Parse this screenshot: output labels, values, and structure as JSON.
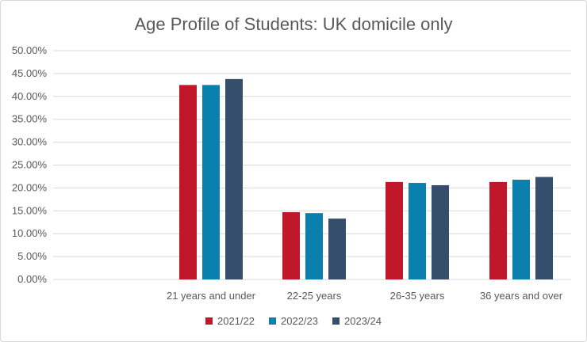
{
  "chart_data": {
    "type": "bar",
    "title": "Age Profile of Students: UK domicile only",
    "categories": [
      "21 years and under",
      "22-25 years",
      "26-35 years",
      "36 years and over"
    ],
    "series": [
      {
        "name": "2021/22",
        "color": "#c0172b",
        "values": [
          42.5,
          14.7,
          21.3,
          21.3
        ]
      },
      {
        "name": "2022/23",
        "color": "#0b7fad",
        "values": [
          42.5,
          14.5,
          21.1,
          21.8
        ]
      },
      {
        "name": "2023/24",
        "color": "#344e6c",
        "values": [
          43.8,
          13.3,
          20.6,
          22.4
        ]
      }
    ],
    "ylim": [
      0,
      50
    ],
    "yticks": [
      "0.00%",
      "5.00%",
      "10.00%",
      "15.00%",
      "20.00%",
      "25.00%",
      "30.00%",
      "35.00%",
      "40.00%",
      "45.00%",
      "50.00%"
    ],
    "grid": true,
    "legend_position": "bottom"
  }
}
